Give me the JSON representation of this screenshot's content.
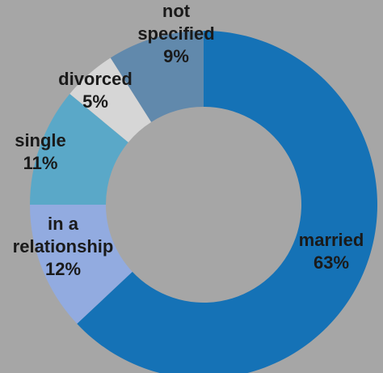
{
  "chart_data": {
    "type": "pie",
    "donut": true,
    "title": "",
    "legend": "none",
    "slices": [
      {
        "label": "married",
        "percent_label": "63%",
        "value": 63,
        "color": "#1572b6",
        "text_color": "#1a1a1a"
      },
      {
        "label": "in a relationship",
        "percent_label": "12%",
        "value": 12,
        "color": "#92abe0",
        "text_color": "#1a1a1a"
      },
      {
        "label": "single",
        "percent_label": "11%",
        "value": 11,
        "color": "#5aa8c8",
        "text_color": "#1a1a1a"
      },
      {
        "label": "divorced",
        "percent_label": "5%",
        "value": 5,
        "color": "#d6d6d6",
        "text_color": "#1a1a1a"
      },
      {
        "label": "not specified",
        "percent_label": "9%",
        "value": 9,
        "color": "#6189ac",
        "text_color": "#1a1a1a"
      }
    ]
  }
}
